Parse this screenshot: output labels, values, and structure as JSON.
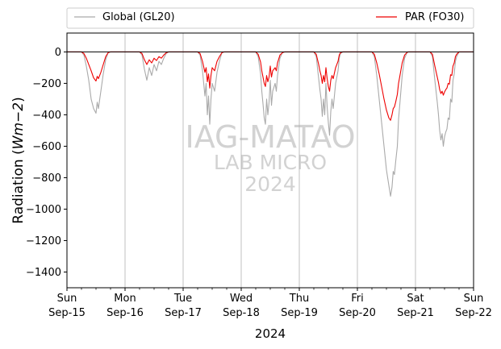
{
  "chart_data": {
    "type": "line",
    "title": "",
    "xlabel": "2024",
    "ylabel": "Radiation ($Wm−2$)",
    "ylabel_parts": {
      "main": "Radiation (",
      "math": "Wm−2",
      "close": ")"
    },
    "ylim": [
      -1500,
      120
    ],
    "xlim": [
      0,
      168
    ],
    "x_unit": "hours since Sun Sep-15 00:00",
    "grid": "vertical at day boundaries",
    "legend_placement": "top, above plot, two columns",
    "zero_line": true,
    "watermark": {
      "line1": "IAG-MATAO",
      "line2": "LAB MICRO",
      "line3": "2024"
    },
    "x_ticks": [
      {
        "x": 0,
        "day": "Sun",
        "date": "Sep-15"
      },
      {
        "x": 24,
        "day": "Mon",
        "date": "Sep-16"
      },
      {
        "x": 48,
        "day": "Tue",
        "date": "Sep-17"
      },
      {
        "x": 72,
        "day": "Wed",
        "date": "Sep-18"
      },
      {
        "x": 96,
        "day": "Thu",
        "date": "Sep-19"
      },
      {
        "x": 120,
        "day": "Fri",
        "date": "Sep-20"
      },
      {
        "x": 144,
        "day": "Sat",
        "date": "Sep-21"
      },
      {
        "x": 168,
        "day": "Sun",
        "date": "Sep-22"
      }
    ],
    "y_ticks": [
      0,
      -200,
      -400,
      -600,
      -800,
      -1000,
      -1200,
      -1400
    ],
    "series": [
      {
        "name": "Global (GL20)",
        "color": "#aaaaaa",
        "points": [
          [
            0,
            0
          ],
          [
            6,
            0
          ],
          [
            7,
            -20
          ],
          [
            8,
            -90
          ],
          [
            9,
            -180
          ],
          [
            10,
            -300
          ],
          [
            11,
            -360
          ],
          [
            12,
            -390
          ],
          [
            12.5,
            -320
          ],
          [
            13,
            -360
          ],
          [
            14,
            -250
          ],
          [
            15,
            -140
          ],
          [
            16,
            -50
          ],
          [
            17,
            -5
          ],
          [
            18,
            0
          ],
          [
            30,
            0
          ],
          [
            31,
            -20
          ],
          [
            32,
            -110
          ],
          [
            33,
            -180
          ],
          [
            34,
            -100
          ],
          [
            35,
            -150
          ],
          [
            36,
            -80
          ],
          [
            37,
            -120
          ],
          [
            38,
            -60
          ],
          [
            39,
            -80
          ],
          [
            40,
            -40
          ],
          [
            41,
            -10
          ],
          [
            42,
            0
          ],
          [
            54,
            0
          ],
          [
            55,
            -20
          ],
          [
            56,
            -120
          ],
          [
            57,
            -280
          ],
          [
            57.5,
            -200
          ],
          [
            58,
            -400
          ],
          [
            58.5,
            -280
          ],
          [
            59,
            -460
          ],
          [
            59.5,
            -300
          ],
          [
            60,
            -200
          ],
          [
            61,
            -250
          ],
          [
            62,
            -130
          ],
          [
            63,
            -60
          ],
          [
            64,
            -5
          ],
          [
            65,
            0
          ],
          [
            78,
            0
          ],
          [
            79,
            -30
          ],
          [
            80,
            -140
          ],
          [
            80.5,
            -250
          ],
          [
            81,
            -330
          ],
          [
            81.5,
            -420
          ],
          [
            82,
            -460
          ],
          [
            82.5,
            -300
          ],
          [
            83,
            -400
          ],
          [
            83.5,
            -320
          ],
          [
            84,
            -180
          ],
          [
            84.5,
            -340
          ],
          [
            85,
            -250
          ],
          [
            86,
            -200
          ],
          [
            86.5,
            -250
          ],
          [
            87,
            -150
          ],
          [
            88,
            -40
          ],
          [
            89,
            -5
          ],
          [
            90,
            0
          ],
          [
            102,
            0
          ],
          [
            103,
            -30
          ],
          [
            104,
            -170
          ],
          [
            104.5,
            -240
          ],
          [
            105,
            -300
          ],
          [
            105.5,
            -410
          ],
          [
            106,
            -300
          ],
          [
            106.5,
            -400
          ],
          [
            107,
            -200
          ],
          [
            107.5,
            -350
          ],
          [
            108,
            -450
          ],
          [
            108.5,
            -530
          ],
          [
            109,
            -380
          ],
          [
            109.5,
            -300
          ],
          [
            110,
            -360
          ],
          [
            111,
            -200
          ],
          [
            112,
            -120
          ],
          [
            112.5,
            -40
          ],
          [
            113,
            -10
          ],
          [
            114,
            0
          ],
          [
            126,
            0
          ],
          [
            127,
            -30
          ],
          [
            128,
            -150
          ],
          [
            129,
            -300
          ],
          [
            130,
            -450
          ],
          [
            131,
            -600
          ],
          [
            132,
            -750
          ],
          [
            133,
            -850
          ],
          [
            133.7,
            -918
          ],
          [
            134.3,
            -860
          ],
          [
            134.8,
            -760
          ],
          [
            135.3,
            -780
          ],
          [
            135.8,
            -700
          ],
          [
            136.5,
            -600
          ],
          [
            137,
            -430
          ],
          [
            137.7,
            -300
          ],
          [
            138.5,
            -150
          ],
          [
            139.5,
            -40
          ],
          [
            140.5,
            -5
          ],
          [
            141,
            0
          ],
          [
            150,
            0
          ],
          [
            151,
            -30
          ],
          [
            152,
            -180
          ],
          [
            153,
            -320
          ],
          [
            153.5,
            -400
          ],
          [
            154,
            -500
          ],
          [
            154.5,
            -560
          ],
          [
            155,
            -520
          ],
          [
            155.5,
            -600
          ],
          [
            156,
            -540
          ],
          [
            156.5,
            -510
          ],
          [
            157,
            -490
          ],
          [
            157.5,
            -420
          ],
          [
            158,
            -430
          ],
          [
            158.5,
            -300
          ],
          [
            159,
            -320
          ],
          [
            159.5,
            -180
          ],
          [
            160,
            -140
          ],
          [
            160.5,
            -60
          ],
          [
            161,
            -30
          ],
          [
            162,
            0
          ],
          [
            168,
            0
          ]
        ]
      },
      {
        "name": "PAR (FO30)",
        "color": "#ee0000",
        "points": [
          [
            0,
            0
          ],
          [
            6,
            0
          ],
          [
            7,
            -10
          ],
          [
            8,
            -40
          ],
          [
            9,
            -80
          ],
          [
            10,
            -120
          ],
          [
            11,
            -165
          ],
          [
            12,
            -185
          ],
          [
            12.5,
            -155
          ],
          [
            13,
            -170
          ],
          [
            14,
            -130
          ],
          [
            15,
            -80
          ],
          [
            16,
            -30
          ],
          [
            17,
            -5
          ],
          [
            18,
            0
          ],
          [
            30,
            0
          ],
          [
            31,
            -10
          ],
          [
            32,
            -50
          ],
          [
            33,
            -80
          ],
          [
            34,
            -50
          ],
          [
            35,
            -70
          ],
          [
            36,
            -40
          ],
          [
            37,
            -55
          ],
          [
            38,
            -30
          ],
          [
            39,
            -40
          ],
          [
            40,
            -20
          ],
          [
            41,
            -5
          ],
          [
            42,
            0
          ],
          [
            54,
            0
          ],
          [
            55,
            -10
          ],
          [
            56,
            -60
          ],
          [
            57,
            -130
          ],
          [
            57.5,
            -100
          ],
          [
            58,
            -190
          ],
          [
            58.5,
            -140
          ],
          [
            59,
            -230
          ],
          [
            59.5,
            -150
          ],
          [
            60,
            -100
          ],
          [
            61,
            -120
          ],
          [
            62,
            -60
          ],
          [
            63,
            -30
          ],
          [
            64,
            -5
          ],
          [
            65,
            0
          ],
          [
            78,
            0
          ],
          [
            79,
            -15
          ],
          [
            80,
            -65
          ],
          [
            80.5,
            -120
          ],
          [
            81,
            -160
          ],
          [
            81.5,
            -200
          ],
          [
            82,
            -220
          ],
          [
            82.5,
            -150
          ],
          [
            83,
            -190
          ],
          [
            83.5,
            -160
          ],
          [
            84,
            -90
          ],
          [
            84.5,
            -160
          ],
          [
            85,
            -120
          ],
          [
            86,
            -100
          ],
          [
            86.5,
            -120
          ],
          [
            87,
            -70
          ],
          [
            88,
            -20
          ],
          [
            89,
            -5
          ],
          [
            90,
            0
          ],
          [
            102,
            0
          ],
          [
            103,
            -15
          ],
          [
            104,
            -80
          ],
          [
            104.5,
            -120
          ],
          [
            105,
            -150
          ],
          [
            105.5,
            -200
          ],
          [
            106,
            -150
          ],
          [
            106.5,
            -190
          ],
          [
            107,
            -100
          ],
          [
            107.5,
            -170
          ],
          [
            108,
            -220
          ],
          [
            108.5,
            -250
          ],
          [
            109,
            -180
          ],
          [
            109.5,
            -150
          ],
          [
            110,
            -170
          ],
          [
            111,
            -100
          ],
          [
            112,
            -60
          ],
          [
            112.5,
            -20
          ],
          [
            113,
            -5
          ],
          [
            114,
            0
          ],
          [
            126,
            0
          ],
          [
            127,
            -15
          ],
          [
            128,
            -70
          ],
          [
            129,
            -140
          ],
          [
            130,
            -220
          ],
          [
            131,
            -300
          ],
          [
            132,
            -370
          ],
          [
            133,
            -420
          ],
          [
            133.7,
            -435
          ],
          [
            134.3,
            -400
          ],
          [
            134.8,
            -360
          ],
          [
            135.3,
            -350
          ],
          [
            135.8,
            -320
          ],
          [
            136.5,
            -270
          ],
          [
            137,
            -200
          ],
          [
            137.7,
            -140
          ],
          [
            138.5,
            -70
          ],
          [
            139.5,
            -20
          ],
          [
            140.5,
            -3
          ],
          [
            141,
            0
          ],
          [
            150,
            0
          ],
          [
            151,
            -15
          ],
          [
            152,
            -90
          ],
          [
            153,
            -160
          ],
          [
            153.5,
            -195
          ],
          [
            154,
            -240
          ],
          [
            154.5,
            -265
          ],
          [
            155,
            -250
          ],
          [
            155.5,
            -275
          ],
          [
            156,
            -255
          ],
          [
            156.5,
            -240
          ],
          [
            157,
            -230
          ],
          [
            157.5,
            -200
          ],
          [
            158,
            -205
          ],
          [
            158.5,
            -145
          ],
          [
            159,
            -150
          ],
          [
            159.5,
            -90
          ],
          [
            160,
            -70
          ],
          [
            160.5,
            -30
          ],
          [
            161,
            -15
          ],
          [
            162,
            0
          ],
          [
            168,
            0
          ]
        ]
      }
    ]
  }
}
